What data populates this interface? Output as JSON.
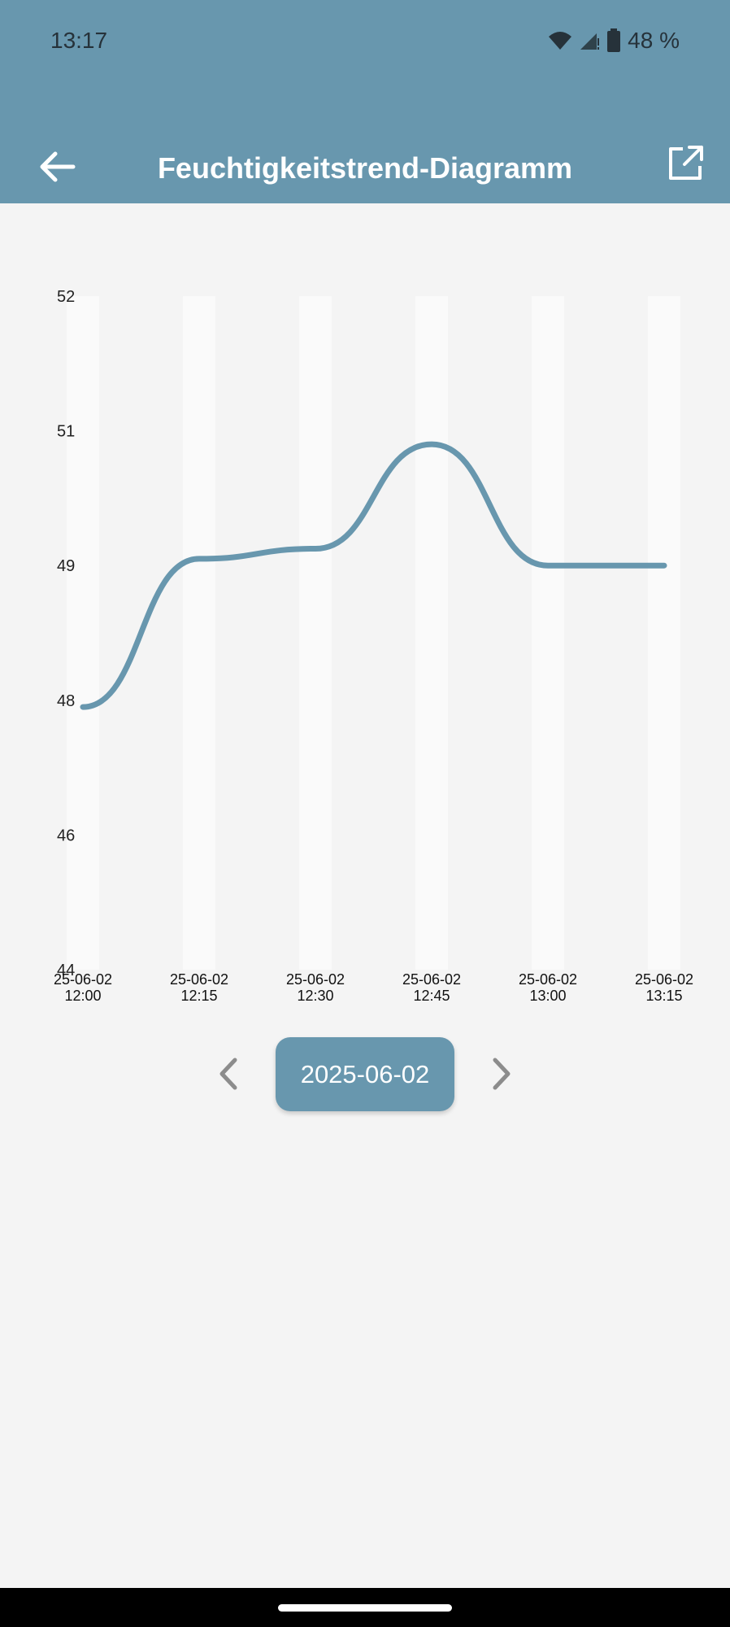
{
  "status_bar": {
    "time": "13:17",
    "battery": "48 %",
    "icons": [
      "wifi-icon",
      "signal-icon",
      "battery-icon"
    ]
  },
  "header": {
    "title": "Feuchtigkeitstrend-Diagramm",
    "back_icon": "arrow-left-icon",
    "share_icon": "external-link-icon"
  },
  "date_nav": {
    "date": "2025-06-02",
    "prev_icon": "chevron-left-icon",
    "next_icon": "chevron-right-icon"
  },
  "colors": {
    "accent": "#6897ae",
    "background": "#f4f4f4",
    "band": "#fafafa",
    "chevron": "#8c8c8c"
  },
  "chart_data": {
    "type": "line",
    "title": "",
    "xlabel": "",
    "ylabel": "",
    "y_ticks": [
      "52",
      "51",
      "49",
      "48",
      "46",
      "44"
    ],
    "categories": [
      "25-06-02\n12:00",
      "25-06-02\n12:15",
      "25-06-02\n12:30",
      "25-06-02\n12:45",
      "25-06-02\n13:00",
      "25-06-02\n13:15"
    ],
    "values": [
      47.9,
      49.1,
      49.25,
      50.8,
      49.0,
      49.0
    ],
    "grid": false,
    "alternating_column_bands": true,
    "smooth": true
  }
}
